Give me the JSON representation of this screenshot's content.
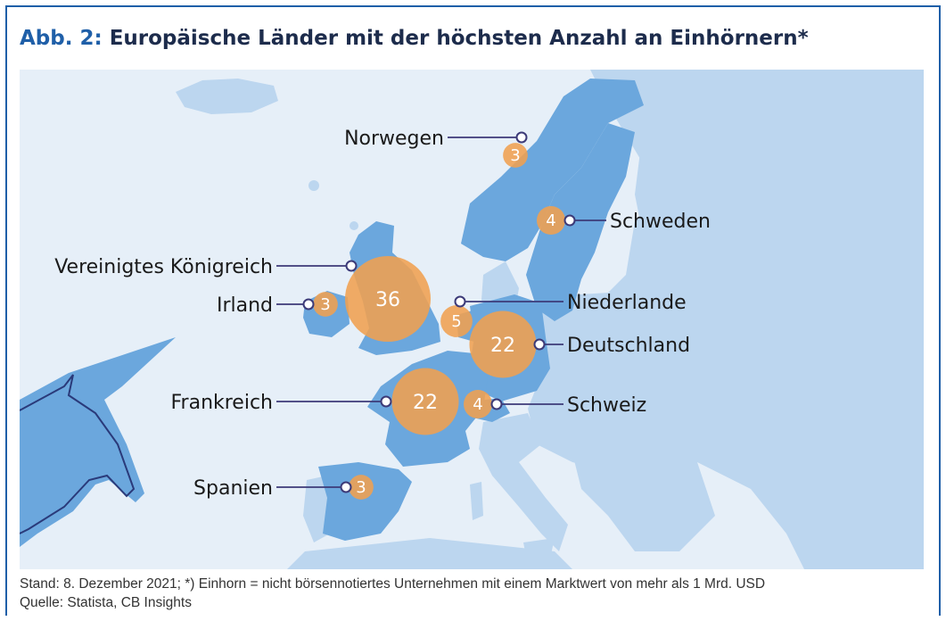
{
  "header": {
    "prefix": "Abb. 2:",
    "title": "Europäische Länder mit der höchsten Anzahl an Einhörnern*"
  },
  "footer": {
    "note": "Stand: 8. Dezember 2021; *) Einhorn = nicht börsennotiertes Unternehmen mit einem Marktwert von mehr als 1 Mrd. USD",
    "source": "Quelle: Statista, CB Insights"
  },
  "colors": {
    "ocean": "#e6eff8",
    "land": "#bcd6ef",
    "highlight": "#6ba7dd",
    "bubble": "#f0a050",
    "leader": "#3c3a78",
    "frame": "#1f5fa8"
  },
  "chart_data": {
    "type": "bubble-map",
    "title": "Europäische Länder mit der höchsten Anzahl an Einhörnern*",
    "points": [
      {
        "country": "Vereinigtes Königreich",
        "value": 36
      },
      {
        "country": "Deutschland",
        "value": 22
      },
      {
        "country": "Frankreich",
        "value": 22
      },
      {
        "country": "Niederlande",
        "value": 5
      },
      {
        "country": "Schweden",
        "value": 4
      },
      {
        "country": "Schweiz",
        "value": 4
      },
      {
        "country": "Norwegen",
        "value": 3
      },
      {
        "country": "Irland",
        "value": 3
      },
      {
        "country": "Spanien",
        "value": 3
      }
    ]
  }
}
